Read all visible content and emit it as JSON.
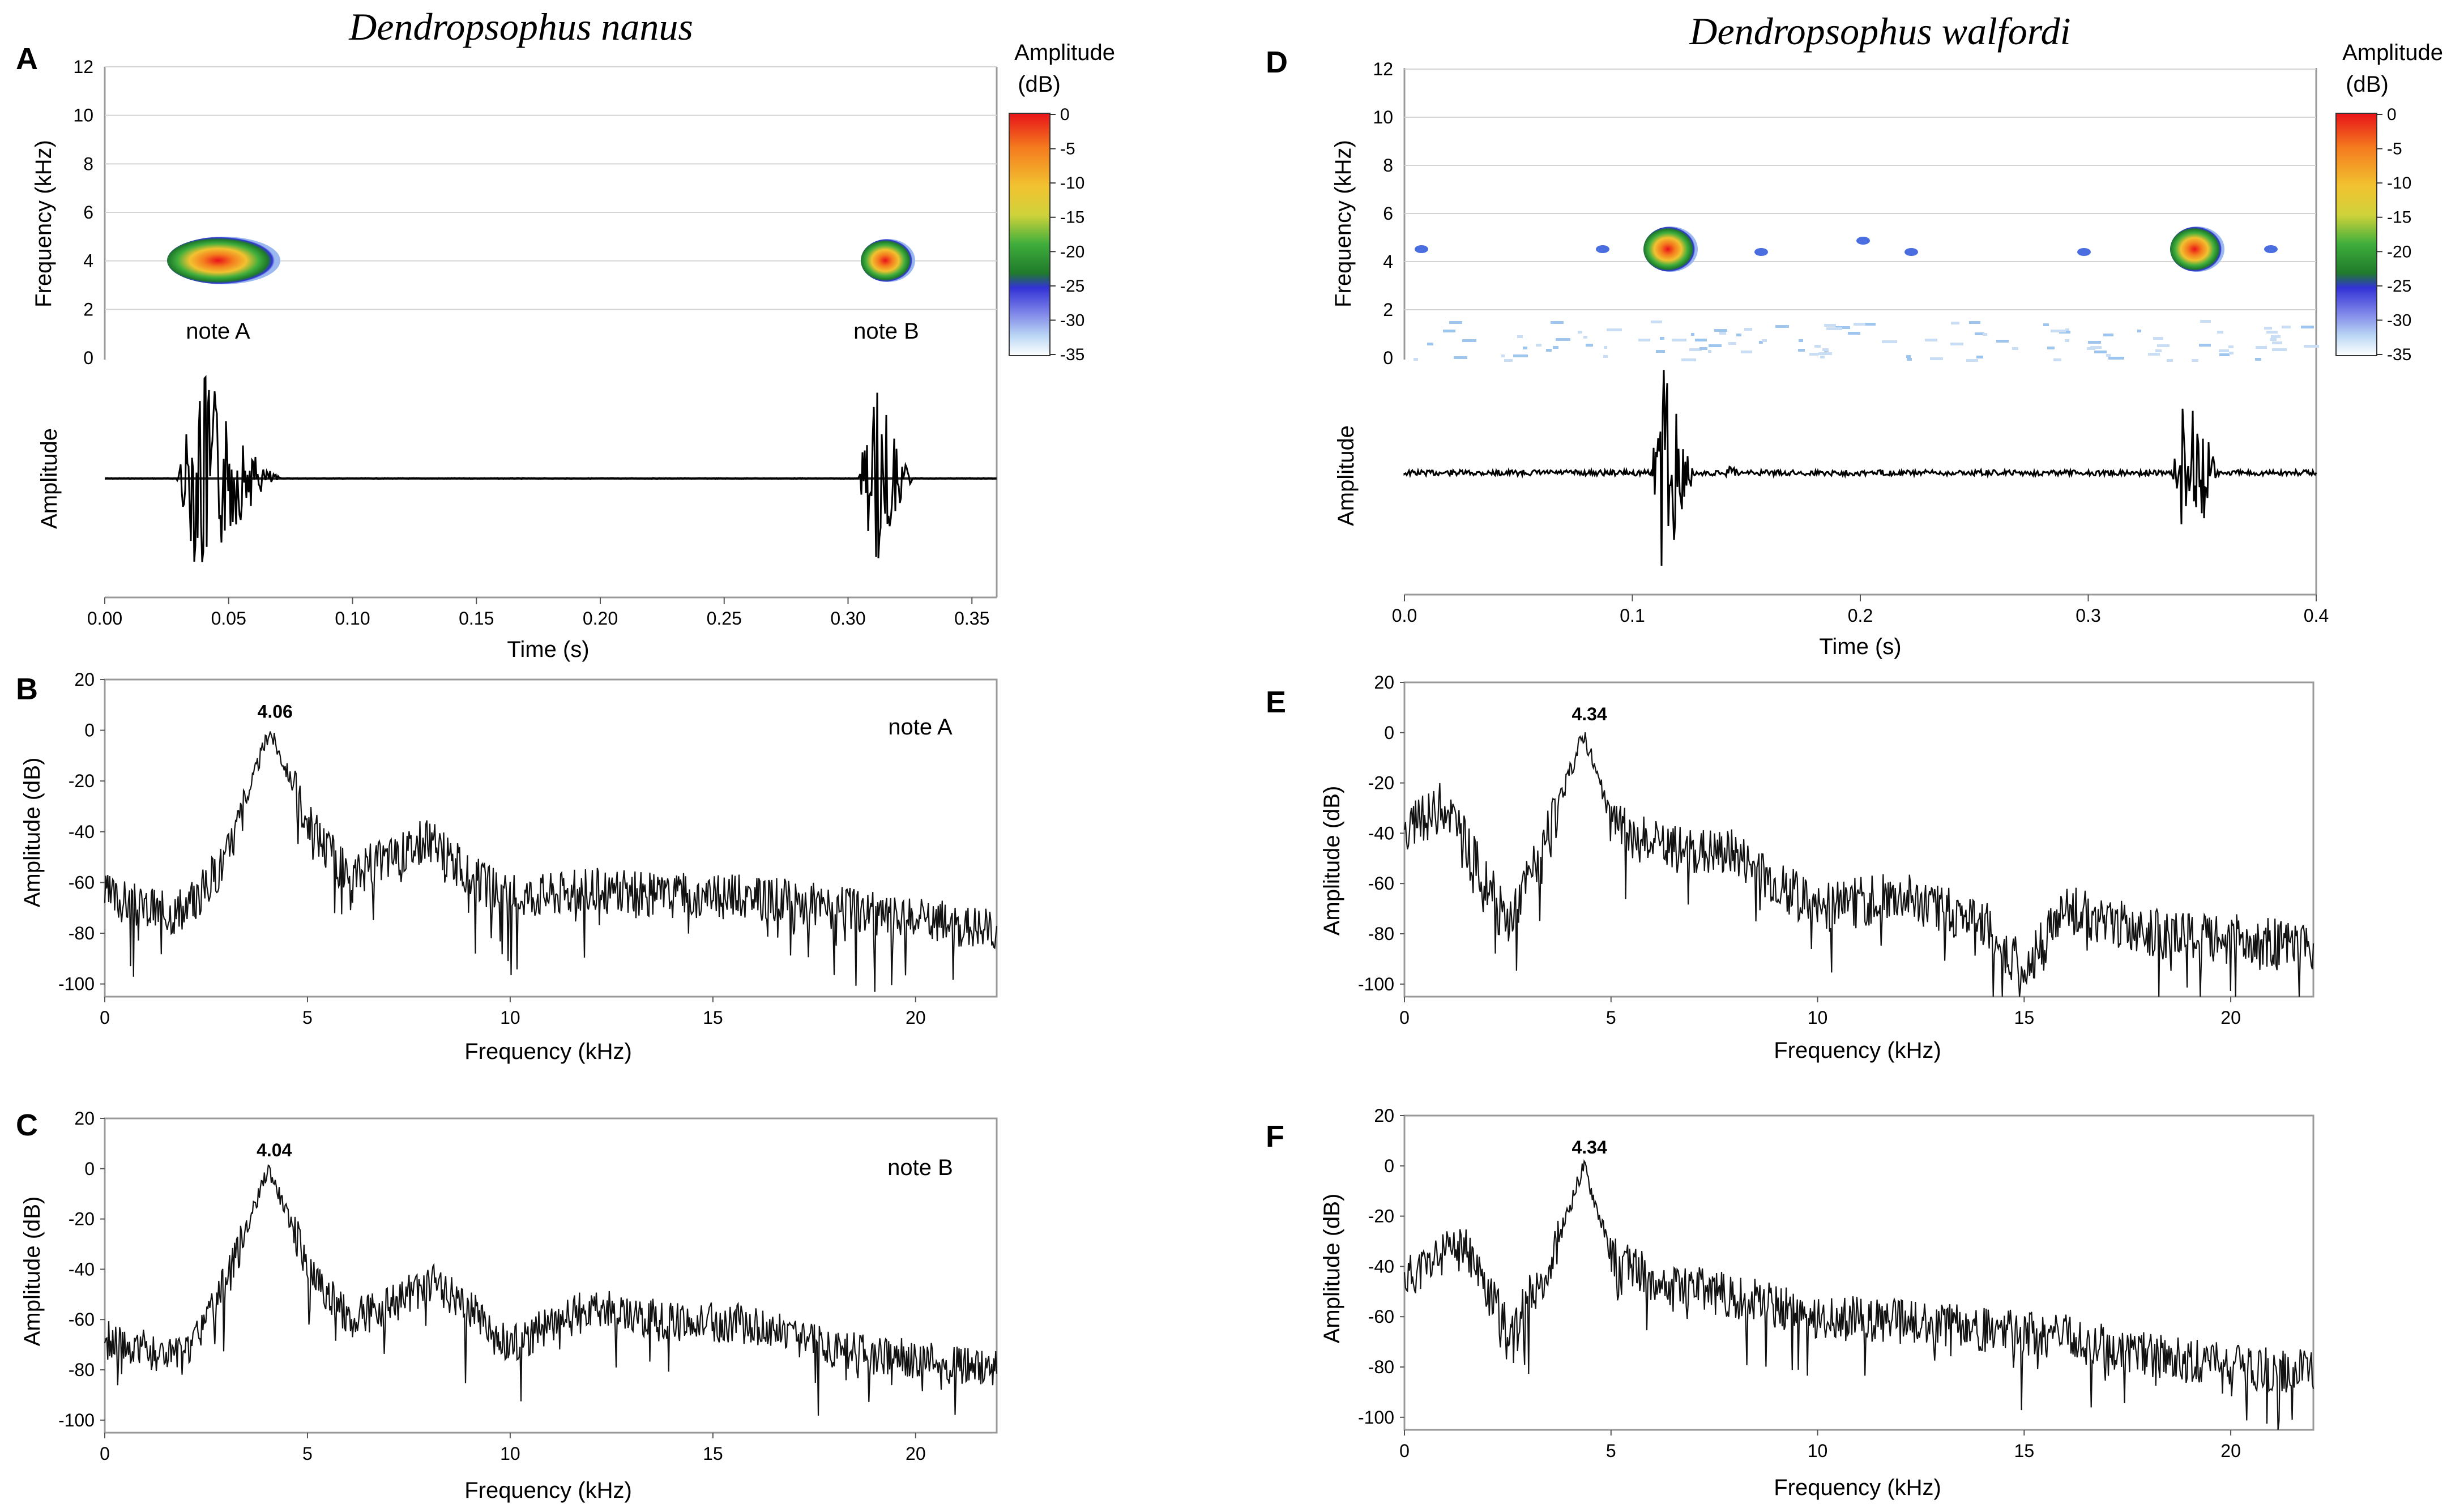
{
  "figure": {
    "species_left": "Dendropsophus nanus",
    "species_right": "Dendropsophus walfordi",
    "colorbar": {
      "title_line1": "Amplitude",
      "title_line2": "(dB)",
      "ticks": [
        "0",
        "-5",
        "-10",
        "-15",
        "-20",
        "-25",
        "-30",
        "-35"
      ],
      "colors": [
        "#e8121a",
        "#f47a1e",
        "#f2c230",
        "#d9d43a",
        "#3fae3c",
        "#1f7a2a",
        "#3232d6",
        "#7b82e8",
        "#bcd8f5",
        "#ffffff"
      ]
    },
    "panels": {
      "A": {
        "letter": "A",
        "y_label_top": "Frequency (kHz)",
        "y_ticks_top": [
          "12",
          "10",
          "8",
          "6",
          "4",
          "2",
          "0"
        ],
        "y_label_bottom": "Amplitude",
        "x_label": "Time (s)",
        "x_ticks": [
          "0.00",
          "0.05",
          "0.10",
          "0.15",
          "0.20",
          "0.25",
          "0.30",
          "0.35"
        ],
        "note_a": "note A",
        "note_b": "note B"
      },
      "B": {
        "letter": "B",
        "y_label": "Amplitude (dB)",
        "y_ticks": [
          "20",
          "0",
          "-20",
          "-40",
          "-60",
          "-80",
          "-100"
        ],
        "x_label": "Frequency (kHz)",
        "x_ticks": [
          "0",
          "5",
          "10",
          "15",
          "20"
        ],
        "peak": "4.06",
        "note": "note A"
      },
      "C": {
        "letter": "C",
        "y_label": "Amplitude (dB)",
        "y_ticks": [
          "20",
          "0",
          "-20",
          "-40",
          "-60",
          "-80",
          "-100"
        ],
        "x_label": "Frequency (kHz)",
        "x_ticks": [
          "0",
          "5",
          "10",
          "15",
          "20"
        ],
        "peak": "4.04",
        "note": "note B"
      },
      "D": {
        "letter": "D",
        "y_label_top": "Frequency (kHz)",
        "y_ticks_top": [
          "12",
          "10",
          "8",
          "6",
          "4",
          "2",
          "0"
        ],
        "y_label_bottom": "Amplitude",
        "x_label": "Time (s)",
        "x_ticks": [
          "0.0",
          "0.1",
          "0.2",
          "0.3",
          "0.4"
        ]
      },
      "E": {
        "letter": "E",
        "y_label": "Amplitude (dB)",
        "y_ticks": [
          "20",
          "0",
          "-20",
          "-40",
          "-60",
          "-80",
          "-100"
        ],
        "x_label": "Frequency (kHz)",
        "x_ticks": [
          "0",
          "5",
          "10",
          "15",
          "20"
        ],
        "peak": "4.34"
      },
      "F": {
        "letter": "F",
        "y_label": "Amplitude (dB)",
        "y_ticks": [
          "20",
          "0",
          "-20",
          "-40",
          "-60",
          "-80",
          "-100"
        ],
        "x_label": "Frequency (kHz)",
        "x_ticks": [
          "0",
          "5",
          "10",
          "15",
          "20"
        ],
        "peak": "4.34"
      }
    }
  },
  "chart_data": [
    {
      "panel": "A",
      "type": "heatmap",
      "ylabel": "Frequency (kHz)",
      "xlabel": "Time (s)",
      "xlim": [
        0,
        0.36
      ],
      "ylim": [
        0,
        12
      ],
      "notes": [
        {
          "label": "note A",
          "t_start": 0.03,
          "t_end": 0.072,
          "peak_freq": 4.06
        },
        {
          "label": "note B",
          "t_start": 0.308,
          "t_end": 0.33,
          "peak_freq": 4.04
        }
      ]
    },
    {
      "panel": "B",
      "type": "line",
      "xlabel": "Frequency (kHz)",
      "ylabel": "Amplitude (dB)",
      "xlim": [
        0,
        22
      ],
      "ylim": [
        -105,
        20
      ],
      "peak": {
        "x": 4.06,
        "y": 0,
        "label": "4.06"
      },
      "series": [
        {
          "x": [
            0,
            1,
            2,
            3,
            4.06,
            5,
            6,
            7,
            8,
            9,
            10,
            12,
            14,
            16,
            18,
            20,
            22
          ],
          "values": [
            -65,
            -70,
            -72,
            -50,
            0,
            -35,
            -58,
            -50,
            -43,
            -58,
            -65,
            -63,
            -65,
            -66,
            -70,
            -75,
            -78
          ]
        }
      ]
    },
    {
      "panel": "C",
      "type": "line",
      "xlabel": "Frequency (kHz)",
      "ylabel": "Amplitude (dB)",
      "xlim": [
        0,
        22
      ],
      "ylim": [
        -105,
        20
      ],
      "peak": {
        "x": 4.04,
        "y": 0,
        "label": "4.04"
      },
      "series": [
        {
          "x": [
            0,
            1,
            2,
            3,
            4.04,
            5,
            6,
            7,
            8,
            9,
            10,
            12,
            14,
            16,
            18,
            20,
            22
          ],
          "values": [
            -68,
            -72,
            -75,
            -45,
            0,
            -38,
            -60,
            -55,
            -45,
            -55,
            -70,
            -55,
            -60,
            -62,
            -72,
            -76,
            -80
          ]
        }
      ]
    },
    {
      "panel": "D",
      "type": "heatmap",
      "ylabel": "Frequency (kHz)",
      "xlabel": "Time (s)",
      "xlim": [
        0,
        0.4
      ],
      "ylim": [
        0,
        12
      ],
      "notes": [
        {
          "t_start": 0.105,
          "t_end": 0.125,
          "peak_freq": 4.34
        },
        {
          "t_start": 0.335,
          "t_end": 0.355,
          "peak_freq": 4.34
        }
      ]
    },
    {
      "panel": "E",
      "type": "line",
      "xlabel": "Frequency (kHz)",
      "ylabel": "Amplitude (dB)",
      "xlim": [
        0,
        22
      ],
      "ylim": [
        -105,
        20
      ],
      "peak": {
        "x": 4.34,
        "y": 0,
        "label": "4.34"
      },
      "series": [
        {
          "x": [
            0,
            1,
            2,
            2.5,
            3.5,
            4.34,
            5,
            6,
            8,
            10,
            12,
            14,
            15,
            16,
            18,
            20,
            22
          ],
          "values": [
            -40,
            -28,
            -60,
            -75,
            -40,
            0,
            -35,
            -45,
            -48,
            -70,
            -65,
            -75,
            -95,
            -70,
            -80,
            -82,
            -85
          ]
        }
      ]
    },
    {
      "panel": "F",
      "type": "line",
      "xlabel": "Frequency (kHz)",
      "ylabel": "Amplitude (dB)",
      "xlim": [
        0,
        22
      ],
      "ylim": [
        -105,
        20
      ],
      "peak": {
        "x": 4.34,
        "y": 0,
        "label": "4.34"
      },
      "series": [
        {
          "x": [
            0,
            1,
            1.5,
            2.5,
            3.5,
            4.34,
            5,
            6,
            8,
            10,
            12,
            14,
            16,
            18,
            20,
            22
          ],
          "values": [
            -45,
            -35,
            -33,
            -65,
            -40,
            0,
            -35,
            -45,
            -52,
            -60,
            -62,
            -65,
            -68,
            -75,
            -80,
            -82
          ]
        }
      ]
    }
  ]
}
